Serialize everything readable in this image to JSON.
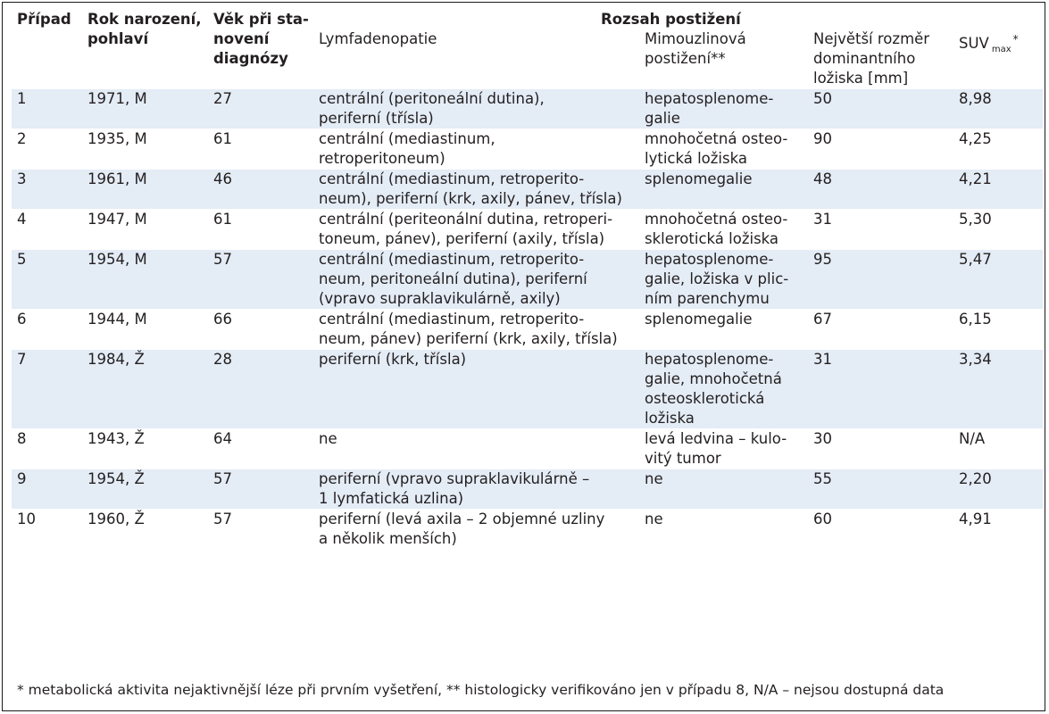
{
  "table": {
    "header": {
      "col1": "Případ",
      "col2_lines": [
        "Rok narození,",
        "pohlaví"
      ],
      "col3_lines": [
        "Věk při sta-",
        "novení",
        "diagnózy"
      ],
      "span_title": "Rozsah postižení",
      "col4_lines": [
        "Lymfadenopatie"
      ],
      "col5_lines": [
        "Mimouzlinová",
        "postižení**"
      ],
      "col6_lines": [
        "Největší rozměr",
        "dominantního",
        "ložiska [mm]"
      ],
      "col7_main": "SUV",
      "col7_sub": "max",
      "col7_sup": "*"
    },
    "rows": [
      {
        "case": "1",
        "born": "1971, M",
        "age": "27",
        "lymph": [
          "centrální (peritoneální dutina),",
          "periferní (třísla)"
        ],
        "extra": [
          "hepatosplenome-",
          "galie"
        ],
        "size": "50",
        "suv": "8,98"
      },
      {
        "case": "2",
        "born": "1935, M",
        "age": "61",
        "lymph": [
          "centrální (mediastinum,",
          "retroperitoneum)"
        ],
        "extra": [
          "mnohočetná osteo-",
          "lytická ložiska"
        ],
        "size": "90",
        "suv": "4,25"
      },
      {
        "case": "3",
        "born": "1961, M",
        "age": "46",
        "lymph": [
          "centrální (mediastinum, retroperito-",
          "neum), periferní (krk, axily, pánev, třísla)"
        ],
        "extra": [
          "splenomegalie"
        ],
        "size": "48",
        "suv": "4,21"
      },
      {
        "case": "4",
        "born": "1947, M",
        "age": "61",
        "lymph": [
          "centrální (periteonální dutina, retroperi-",
          "toneum, pánev), periferní (axily, třísla)"
        ],
        "extra": [
          "mnohočetná osteo-",
          "sklerotická ložiska"
        ],
        "size": "31",
        "suv": "5,30"
      },
      {
        "case": "5",
        "born": "1954, M",
        "age": "57",
        "lymph": [
          "centrální (mediastinum, retroperito-",
          "neum, peritoneální dutina), periferní",
          "(vpravo supraklavikulárně, axily)"
        ],
        "extra": [
          "hepatosplenome-",
          "galie, ložiska v plic-",
          "ním parenchymu"
        ],
        "size": "95",
        "suv": "5,47"
      },
      {
        "case": "6",
        "born": "1944, M",
        "age": "66",
        "lymph": [
          "centrální (mediastinum, retroperito-",
          "neum, pánev) periferní (krk, axily, třísla)"
        ],
        "extra": [
          "splenomegalie"
        ],
        "size": "67",
        "suv": "6,15"
      },
      {
        "case": "7",
        "born": "1984, Ž",
        "age": "28",
        "lymph": [
          "periferní (krk, třísla)"
        ],
        "extra": [
          "hepatosplenome-",
          "galie, mnohočetná",
          "osteosklerotická",
          "ložiska"
        ],
        "size": "31",
        "suv": "3,34"
      },
      {
        "case": "8",
        "born": "1943, Ž",
        "age": "64",
        "lymph": [
          "ne"
        ],
        "extra": [
          "levá ledvina – kulo-",
          "vitý tumor"
        ],
        "size": "30",
        "suv": "N/A"
      },
      {
        "case": "9",
        "born": "1954, Ž",
        "age": "57",
        "lymph": [
          "periferní (vpravo supraklavikulárně –",
          "1 lymfatická uzlina)"
        ],
        "extra": [
          "ne"
        ],
        "size": "55",
        "suv": "2,20"
      },
      {
        "case": "10",
        "born": "1960, Ž",
        "age": "57",
        "lymph": [
          "periferní (levá axila – 2 objemné uzliny",
          "a několik menších)"
        ],
        "extra": [
          "ne"
        ],
        "size": "60",
        "suv": "4,91"
      }
    ],
    "footnote": "* metabolická aktivita nejaktivnější léze při prvním vyšetření, ** histologicky verifikováno jen v případu 8, N/A – nejsou dostupná data"
  },
  "colors": {
    "stripe": "#e4ecf6",
    "border": "#1a1a1a",
    "text": "#231f20"
  }
}
